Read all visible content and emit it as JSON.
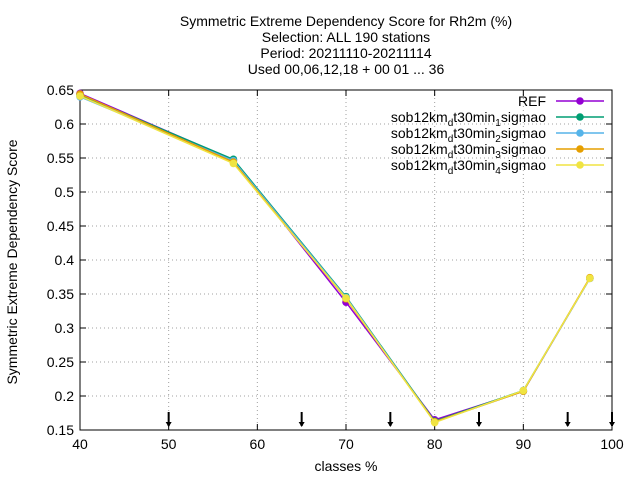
{
  "chart_data": {
    "type": "line",
    "title_lines": [
      "Symmetric Extreme Dependency Score  for Rh2m (%)",
      "Selection: ALL    190 stations",
      "Period: 20211110-20211114",
      "Used 00,06,12,18 + 00 01 ... 36"
    ],
    "xlabel": "classes %",
    "ylabel": "Symmetric Extreme Dependency Score",
    "xlim": [
      40,
      100
    ],
    "ylim": [
      0.15,
      0.65
    ],
    "xticks": [
      40,
      50,
      60,
      70,
      80,
      90,
      100
    ],
    "yticks": [
      0.15,
      0.2,
      0.25,
      0.3,
      0.35,
      0.4,
      0.45,
      0.5,
      0.55,
      0.6,
      0.65
    ],
    "ytick_labels": [
      "0.15",
      "0.2",
      "0.25",
      "0.3",
      "0.35",
      "0.4",
      "0.45",
      "0.5",
      "0.55",
      "0.6",
      "0.65"
    ],
    "grid": true,
    "legend_position": "top-right",
    "class_markers_x": [
      50,
      65,
      75,
      85,
      95,
      100
    ],
    "series": [
      {
        "name": "REF",
        "name_parts": [],
        "color": "#9400d3",
        "x": [
          40,
          57.3,
          70,
          80,
          90,
          97.5
        ],
        "y": [
          0.645,
          0.547,
          0.338,
          0.165,
          0.207,
          0.373
        ]
      },
      {
        "name": "sob12km_dt30min_1sigmao",
        "name_parts": [
          [
            "sob12km"
          ],
          [
            "d",
            "sub"
          ],
          [
            "t30min"
          ],
          [
            "1",
            "sub"
          ],
          [
            "sigmao"
          ]
        ],
        "color": "#009e73",
        "x": [
          40,
          57.3,
          70,
          80,
          90,
          97.5
        ],
        "y": [
          0.643,
          0.548,
          0.346,
          0.163,
          0.208,
          0.373
        ]
      },
      {
        "name": "sob12km_dt30min_2sigmao",
        "name_parts": [
          [
            "sob12km"
          ],
          [
            "d",
            "sub"
          ],
          [
            "t30min"
          ],
          [
            "2",
            "sub"
          ],
          [
            "sigmao"
          ]
        ],
        "color": "#56b4e9",
        "x": [
          40,
          57.3,
          70,
          80,
          90,
          97.5
        ],
        "y": [
          0.64,
          0.546,
          0.345,
          0.162,
          0.207,
          0.373
        ]
      },
      {
        "name": "sob12km_dt30min_3sigmao",
        "name_parts": [
          [
            "sob12km"
          ],
          [
            "d",
            "sub"
          ],
          [
            "t30min"
          ],
          [
            "3",
            "sub"
          ],
          [
            "sigmao"
          ]
        ],
        "color": "#e69f00",
        "x": [
          40,
          57.3,
          70,
          80,
          90,
          97.5
        ],
        "y": [
          0.644,
          0.544,
          0.343,
          0.162,
          0.207,
          0.374
        ]
      },
      {
        "name": "sob12km_dt30min_4sigmao",
        "name_parts": [
          [
            "sob12km"
          ],
          [
            "d",
            "sub"
          ],
          [
            "t30min"
          ],
          [
            "4",
            "sub"
          ],
          [
            "sigmao"
          ]
        ],
        "color": "#f0e442",
        "x": [
          40,
          57.3,
          70,
          80,
          90,
          97.5
        ],
        "y": [
          0.641,
          0.542,
          0.344,
          0.161,
          0.208,
          0.373
        ]
      }
    ]
  }
}
